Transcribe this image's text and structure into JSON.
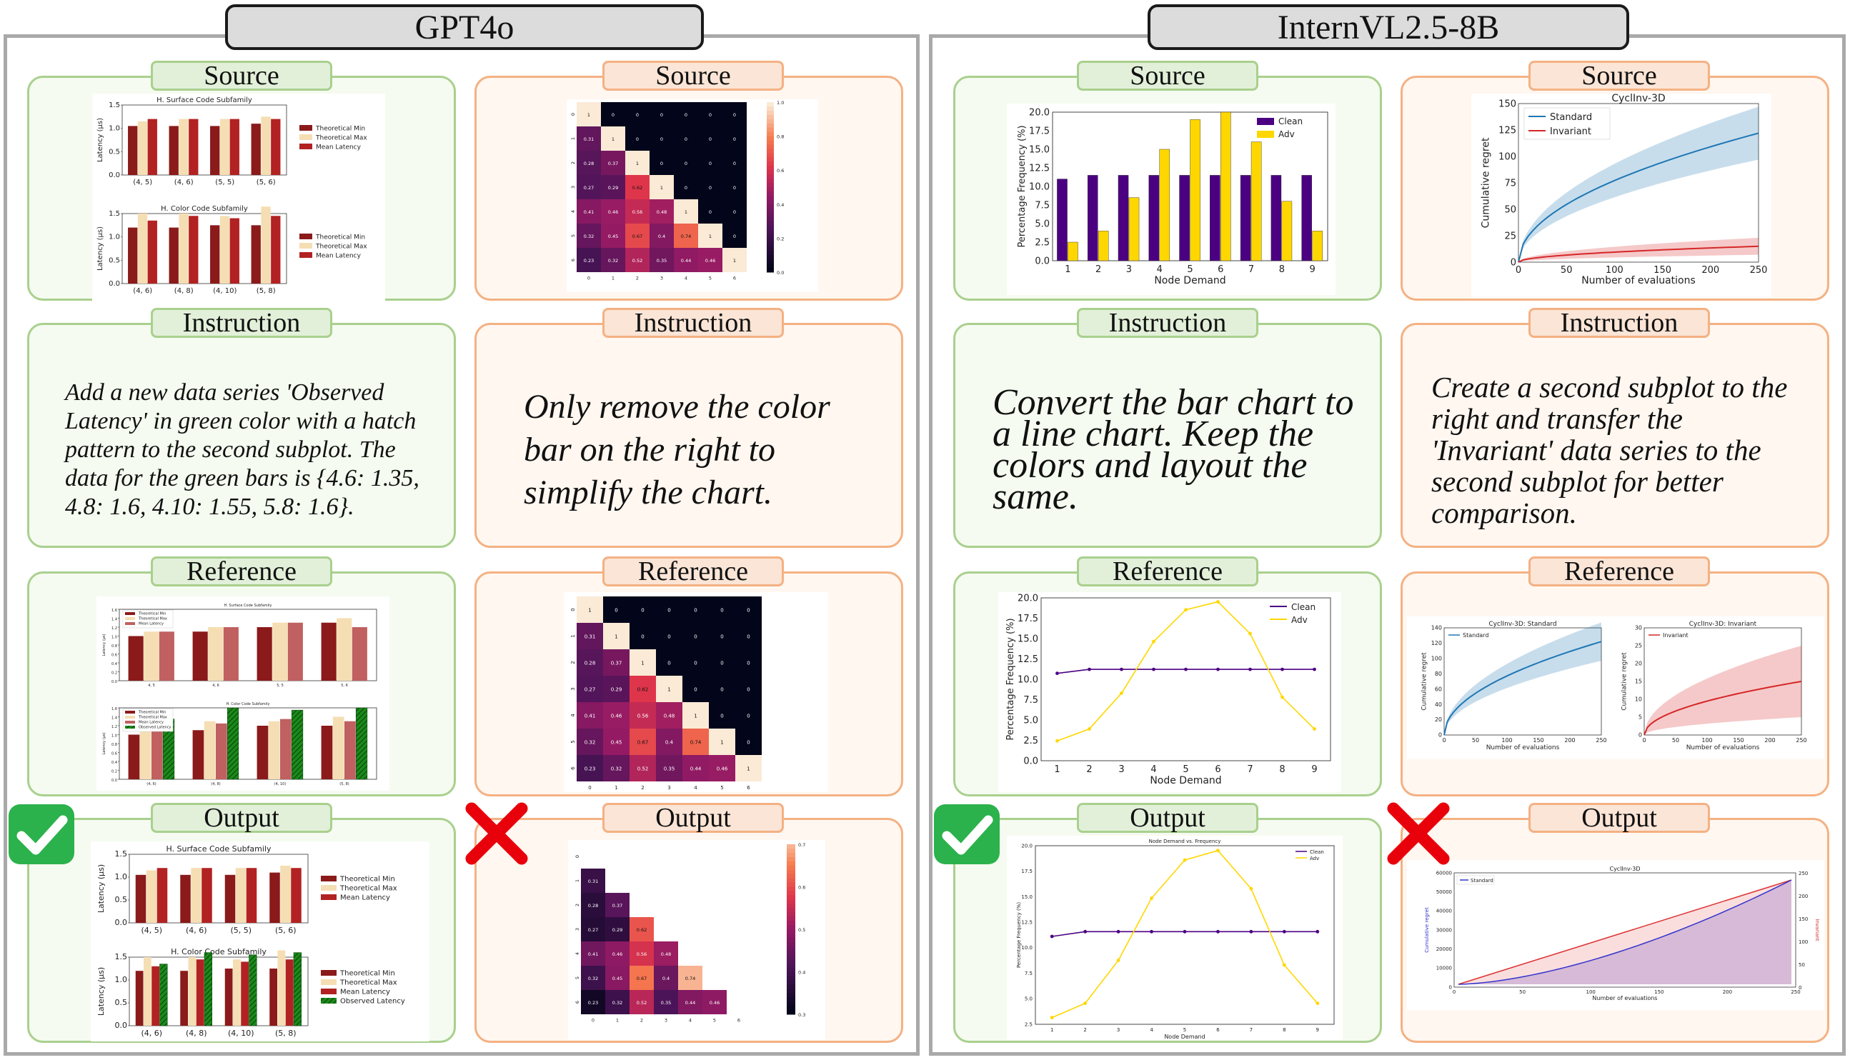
{
  "panels": [
    {
      "title": "GPT4o"
    },
    {
      "title": "InternVL2.5-8B"
    }
  ],
  "labels": {
    "source": "Source",
    "instruction": "Instruction",
    "reference": "Reference",
    "output": "Output"
  },
  "colors": {
    "green_border": "#a9d08e",
    "orange_border": "#f4b183",
    "check": "#2bb24c",
    "cross": "#e8000b"
  },
  "cases": [
    {
      "instruction": "Add a new data series 'Observed Latency' in green color with a hatch pattern to the second subplot. The data for the green bars is {4.6: 1.35, 4.8: 1.6, 4.10: 1.55, 5.8: 1.6}.",
      "result": "check-icon"
    },
    {
      "instruction": "Only remove the color bar on the right to simplify the chart.",
      "result": "cross-icon"
    },
    {
      "instruction": "Convert the bar chart to a line chart. Keep the colors and layout the same.",
      "result": "check-icon"
    },
    {
      "instruction": "Create a second subplot to the right and transfer the 'Invariant' data series to the second subplot for better comparison.",
      "result": "cross-icon"
    }
  ],
  "chart_data": [
    {
      "id": "c1_source",
      "type": "bar",
      "subplots": [
        {
          "title": "H. Surface Code Subfamily",
          "ylabel": "Latency (μs)",
          "categories": [
            "(4, 5)",
            "(4, 6)",
            "(5, 5)",
            "(5, 6)"
          ],
          "ylim": [
            0,
            1.5
          ],
          "yticks": [
            "0.0",
            "0.5",
            "1.0",
            "1.5"
          ],
          "series": [
            {
              "name": "Theoretical Min",
              "color": "#8b1a1a",
              "values": [
                1.05,
                1.05,
                1.05,
                1.1
              ]
            },
            {
              "name": "Theoretical Max",
              "color": "#f5deb3",
              "values": [
                1.15,
                1.2,
                1.2,
                1.25
              ]
            },
            {
              "name": "Mean Latency",
              "color": "#b22222",
              "values": [
                1.2,
                1.2,
                1.2,
                1.2
              ]
            }
          ]
        },
        {
          "title": "H. Color Code Subfamily",
          "ylabel": "Latency (μs)",
          "categories": [
            "(4, 6)",
            "(4, 8)",
            "(4, 10)",
            "(5, 8)"
          ],
          "ylim": [
            0,
            1.5
          ],
          "yticks": [
            "0.0",
            "0.5",
            "1.0",
            "1.5"
          ],
          "series": [
            {
              "name": "Theoretical Min",
              "color": "#8b1a1a",
              "values": [
                1.2,
                1.2,
                1.25,
                1.25
              ]
            },
            {
              "name": "Theoretical Max",
              "color": "#f5deb3",
              "values": [
                1.5,
                1.5,
                1.45,
                1.65
              ]
            },
            {
              "name": "Mean Latency",
              "color": "#b22222",
              "values": [
                1.35,
                1.45,
                1.4,
                1.45
              ]
            }
          ]
        }
      ]
    },
    {
      "id": "c1_reference",
      "type": "bar",
      "subplots": [
        {
          "title": "H. Surface Code Subfamily",
          "ylabel": "Latency (μs)",
          "categories": [
            "4, 5",
            "4, 6",
            "5, 5",
            "5, 6"
          ],
          "ylim": [
            0,
            1.6
          ],
          "yticks": [
            "0.0",
            "0.2",
            "0.4",
            "0.6",
            "0.8",
            "1.0",
            "1.2",
            "1.4",
            "1.6"
          ],
          "series": [
            {
              "name": "Theoretical Min",
              "color": "#8b1a1a",
              "values": [
                1.0,
                1.1,
                1.2,
                1.3
              ]
            },
            {
              "name": "Theoretical Max",
              "color": "#f5deb3",
              "values": [
                1.1,
                1.2,
                1.3,
                1.4
              ]
            },
            {
              "name": "Mean Latency",
              "color": "#c06060",
              "values": [
                1.1,
                1.2,
                1.3,
                1.2
              ]
            }
          ]
        },
        {
          "title": "H. Color Code Subfamily",
          "ylabel": "Latency (μs)",
          "categories": [
            "(4, 6)",
            "(4, 8)",
            "(4, 10)",
            "(5, 8)"
          ],
          "ylim": [
            0,
            1.6
          ],
          "yticks": [
            "0.0",
            "0.2",
            "0.4",
            "0.6",
            "0.8",
            "1.0",
            "1.2",
            "1.4",
            "1.6"
          ],
          "series": [
            {
              "name": "Theoretical Min",
              "color": "#8b1a1a",
              "values": [
                1.0,
                1.1,
                1.2,
                1.2
              ]
            },
            {
              "name": "Theoretical Max",
              "color": "#f5deb3",
              "values": [
                1.2,
                1.3,
                1.3,
                1.4
              ]
            },
            {
              "name": "Mean Latency",
              "color": "#c06060",
              "values": [
                1.15,
                1.25,
                1.35,
                1.3
              ]
            },
            {
              "name": "Observed Latency",
              "color": "#1a8a1a",
              "values": [
                1.35,
                1.6,
                1.55,
                1.6
              ]
            }
          ]
        }
      ]
    },
    {
      "id": "c1_output",
      "type": "bar",
      "subplots": [
        {
          "title": "H. Surface Code Subfamily",
          "ylabel": "Latency (μs)",
          "categories": [
            "(4, 5)",
            "(4, 6)",
            "(5, 5)",
            "(5, 6)"
          ],
          "ylim": [
            0,
            1.5
          ],
          "yticks": [
            "0.0",
            "0.5",
            "1.0",
            "1.5"
          ],
          "series": [
            {
              "name": "Theoretical Min",
              "color": "#8b1a1a",
              "values": [
                1.05,
                1.05,
                1.05,
                1.1
              ]
            },
            {
              "name": "Theoretical Max",
              "color": "#f5deb3",
              "values": [
                1.15,
                1.2,
                1.2,
                1.25
              ]
            },
            {
              "name": "Mean Latency",
              "color": "#b22222",
              "values": [
                1.2,
                1.2,
                1.2,
                1.2
              ]
            }
          ]
        },
        {
          "title": "H. Color Code Subfamily",
          "ylabel": "Latency (μs)",
          "categories": [
            "(4, 6)",
            "(4, 8)",
            "(4, 10)",
            "(5, 8)"
          ],
          "ylim": [
            0,
            1.5
          ],
          "yticks": [
            "0.0",
            "0.5",
            "1.0",
            "1.5"
          ],
          "series": [
            {
              "name": "Theoretical Min",
              "color": "#8b1a1a",
              "values": [
                1.2,
                1.2,
                1.25,
                1.25
              ]
            },
            {
              "name": "Theoretical Max",
              "color": "#f5deb3",
              "values": [
                1.5,
                1.5,
                1.45,
                1.65
              ]
            },
            {
              "name": "Mean Latency",
              "color": "#b22222",
              "values": [
                1.3,
                1.45,
                1.4,
                1.45
              ]
            },
            {
              "name": "Observed Latency",
              "color": "#1a8a1a",
              "values": [
                1.35,
                1.6,
                1.55,
                1.6
              ]
            }
          ]
        }
      ]
    },
    {
      "id": "c2_heatmap",
      "type": "heatmap",
      "matrix": [
        [
          1,
          0,
          0,
          0,
          0,
          0,
          0
        ],
        [
          0.31,
          1,
          0,
          0,
          0,
          0,
          0
        ],
        [
          0.28,
          0.37,
          1,
          0,
          0,
          0,
          0
        ],
        [
          0.27,
          0.29,
          0.62,
          1,
          0,
          0,
          0
        ],
        [
          0.41,
          0.46,
          0.56,
          0.48,
          1,
          0,
          0
        ],
        [
          0.32,
          0.45,
          0.67,
          0.4,
          0.74,
          1,
          0
        ],
        [
          0.23,
          0.32,
          0.52,
          0.35,
          0.44,
          0.46,
          1
        ]
      ],
      "labels": [
        "0",
        "1",
        "2",
        "3",
        "4",
        "5",
        "6"
      ],
      "colorbar_ticks_source": [
        "1.0",
        "0.8",
        "0.6",
        "0.4",
        "0.2",
        "0.0"
      ],
      "colorbar_ticks_output": [
        "0.7",
        "0.6",
        "0.5",
        "0.4",
        "0.3"
      ]
    },
    {
      "id": "c3",
      "type": "bar",
      "categories": [
        "1",
        "2",
        "3",
        "4",
        "5",
        "6",
        "7",
        "8",
        "9"
      ],
      "series": [
        {
          "name": "Clean",
          "color": "#4b0082",
          "values": [
            11,
            11.5,
            11.5,
            11.5,
            11.5,
            11.5,
            11.5,
            11.5,
            11.5
          ]
        },
        {
          "name": "Adv",
          "color": "#ffd700",
          "values": [
            2.5,
            4,
            8.5,
            15,
            19,
            20,
            16,
            8,
            4
          ]
        }
      ],
      "xlabel": "Node Demand",
      "ylabel": "Percentage Frequency (%)",
      "ylim": [
        0,
        20
      ],
      "yticks": [
        "0.0",
        "2.5",
        "5.0",
        "7.5",
        "10.0",
        "12.5",
        "15.0",
        "17.5",
        "20.0"
      ],
      "output_title": "Node Demand vs. Frequency",
      "output_yticks": [
        "2.5",
        "5.0",
        "7.5",
        "10.0",
        "12.5",
        "15.0",
        "17.5",
        "20.0"
      ]
    },
    {
      "id": "c4_source",
      "type": "line",
      "title": "CyclInv-3D",
      "xlabel": "Number of evaluations",
      "ylabel": "Cumulative regret",
      "xlim": [
        0,
        250
      ],
      "ylim": [
        0,
        150
      ],
      "xticks": [
        "0",
        "50",
        "100",
        "150",
        "200",
        "250"
      ],
      "yticks": [
        "0",
        "25",
        "50",
        "75",
        "100",
        "125",
        "150"
      ],
      "series": [
        {
          "name": "Standard",
          "color": "#1f77b4",
          "end": 122,
          "band": 25
        },
        {
          "name": "Invariant",
          "color": "#d62728",
          "end": 15,
          "band": 8
        }
      ]
    },
    {
      "id": "c4_reference",
      "type": "line",
      "subplots": [
        {
          "title": "CyclInv-3D: Standard",
          "series_name": "Standard",
          "color": "#1f77b4",
          "ylim": [
            0,
            140
          ],
          "yticks": [
            "0",
            "20",
            "40",
            "60",
            "80",
            "100",
            "120",
            "140"
          ],
          "end": 122,
          "band": 25
        },
        {
          "title": "CyclInv-3D: Invariant",
          "series_name": "Invariant",
          "color": "#d62728",
          "ylim": [
            0,
            30
          ],
          "yticks": [
            "0",
            "5",
            "10",
            "15",
            "20",
            "25",
            "30"
          ],
          "end": 15,
          "band": 10
        }
      ],
      "xlabel": "Number of evaluations",
      "ylabel": "Cumulative regret",
      "xticks": [
        "0",
        "50",
        "100",
        "150",
        "200",
        "250"
      ]
    },
    {
      "id": "c4_output",
      "type": "line",
      "title": "CyclInv-3D",
      "xlabel": "Number of evaluations",
      "ylabel_left": "Cumulative regret",
      "ylabel_right": "Invariant",
      "legend": "Standard",
      "yticks_left": [
        "0",
        "10000",
        "20000",
        "30000",
        "40000",
        "50000",
        "60000"
      ],
      "yticks_right": [
        "0",
        "50",
        "100",
        "150",
        "200",
        "250"
      ],
      "xticks": [
        "0",
        "50",
        "100",
        "150",
        "200",
        "250"
      ]
    }
  ]
}
